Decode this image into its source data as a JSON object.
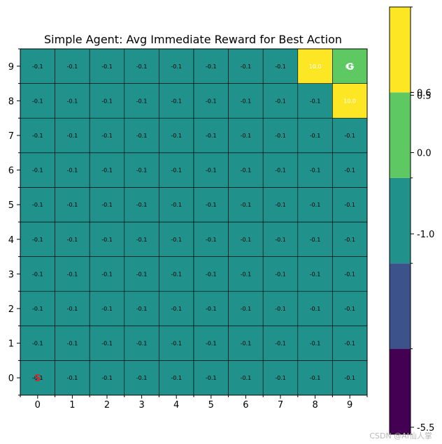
{
  "chart_data": {
    "type": "heatmap",
    "title": "Simple Agent: Avg Immediate Reward for Best Action",
    "x_ticks": [
      "0",
      "1",
      "2",
      "3",
      "4",
      "5",
      "6",
      "7",
      "8",
      "9"
    ],
    "y_ticks": [
      "0",
      "1",
      "2",
      "3",
      "4",
      "5",
      "6",
      "7",
      "8",
      "9"
    ],
    "grid": true,
    "cell_value_default": -0.1,
    "cells": [
      {
        "x": 8,
        "y": 9,
        "value": 10.0
      },
      {
        "x": 9,
        "y": 8,
        "value": 10.0
      },
      {
        "x": 9,
        "y": 9,
        "value": 0.5
      }
    ],
    "markers": [
      {
        "x": 0,
        "y": 0,
        "label": "S",
        "color": "#d62728"
      },
      {
        "x": 9,
        "y": 9,
        "label": "G",
        "color": "#ffffff"
      }
    ],
    "colorbar": {
      "bins": [
        {
          "color": "#440154"
        },
        {
          "color": "#3b528b"
        },
        {
          "color": "#21918c"
        },
        {
          "color": "#5ec962"
        },
        {
          "color": "#fde725"
        }
      ],
      "ticks": [
        {
          "label": "-5.5",
          "value": -5.5
        },
        {
          "label": "-1.0",
          "value": -1.0
        },
        {
          "label": "0.0",
          "value": 0.0
        },
        {
          "label": "0.5",
          "value": 0.5
        },
        {
          "label": "0.6",
          "value": 0.6
        }
      ]
    }
  },
  "watermark": "CSDN @AI仙人掌"
}
